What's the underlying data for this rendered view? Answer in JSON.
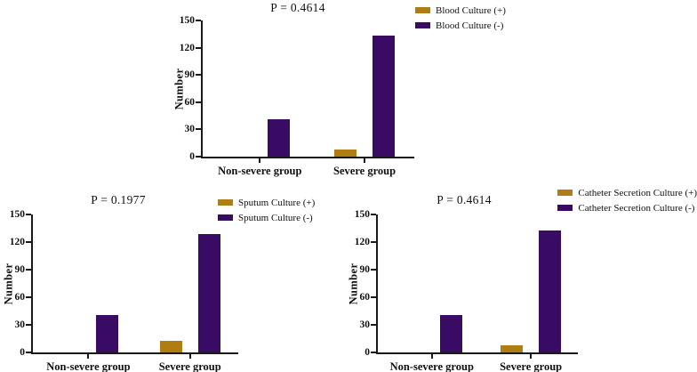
{
  "figure": {
    "background": "#ffffff",
    "axis_color": "#1a1a1a",
    "text_color": "#111111",
    "positive_color": "#B07D12",
    "negative_color": "#3A0B64"
  },
  "chart_data": [
    {
      "type": "bar",
      "id": "blood-culture",
      "title": "P = 0.4614",
      "ylabel": "Number",
      "xlabel": "",
      "ylim": [
        0,
        150
      ],
      "yticks": [
        0,
        30,
        60,
        90,
        120,
        150
      ],
      "categories": [
        "Non-severe group",
        "Severe group"
      ],
      "series": [
        {
          "name": "Blood Culture (+)",
          "color": "#B07D12",
          "values": [
            0,
            8
          ]
        },
        {
          "name": "Blood Culture (-)",
          "color": "#3A0B64",
          "values": [
            41,
            133
          ]
        }
      ],
      "legend_position": "top-right",
      "grid": false
    },
    {
      "type": "bar",
      "id": "sputum-culture",
      "title": "P = 0.1977",
      "ylabel": "Number",
      "xlabel": "",
      "ylim": [
        0,
        150
      ],
      "yticks": [
        0,
        30,
        60,
        90,
        120,
        150
      ],
      "categories": [
        "Non-severe group",
        "Severe group"
      ],
      "series": [
        {
          "name": "Sputum Culture (+)",
          "color": "#B07D12",
          "values": [
            0,
            13
          ]
        },
        {
          "name": "Sputum Culture (-)",
          "color": "#3A0B64",
          "values": [
            41,
            129
          ]
        }
      ],
      "legend_position": "top-right",
      "grid": false
    },
    {
      "type": "bar",
      "id": "catheter-secretion-culture",
      "title": "P = 0.4614",
      "ylabel": "Number",
      "xlabel": "",
      "ylim": [
        0,
        150
      ],
      "yticks": [
        0,
        30,
        60,
        90,
        120,
        150
      ],
      "categories": [
        "Non-severe group",
        "Severe group"
      ],
      "series": [
        {
          "name": "Catheter Secretion Culture (+)",
          "color": "#B07D12",
          "values": [
            0,
            8
          ]
        },
        {
          "name": "Catheter Secretion Culture (-)",
          "color": "#3A0B64",
          "values": [
            41,
            133
          ]
        }
      ],
      "legend_position": "top-right",
      "grid": false
    }
  ]
}
